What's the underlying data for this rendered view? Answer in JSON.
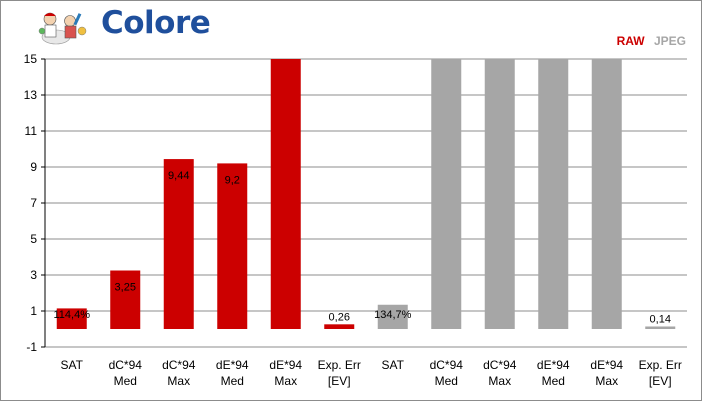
{
  "title": "Colore",
  "legend": [
    {
      "name": "RAW",
      "color": "#cc0000"
    },
    {
      "name": "JPEG",
      "color": "#a6a6a6"
    }
  ],
  "chart_data": {
    "type": "bar",
    "categories": [
      [
        "SAT"
      ],
      [
        "dC*94",
        "Med"
      ],
      [
        "dC*94",
        "Max"
      ],
      [
        "dE*94",
        "Med"
      ],
      [
        "dE*94",
        "Max"
      ],
      [
        "Exp. Err",
        "[EV]"
      ],
      [
        "SAT"
      ],
      [
        "dC*94",
        "Med"
      ],
      [
        "dC*94",
        "Max"
      ],
      [
        "dE*94",
        "Med"
      ],
      [
        "dE*94",
        "Max"
      ],
      [
        "Exp. Err",
        "[EV]"
      ]
    ],
    "values": [
      1.144,
      3.25,
      9.44,
      9.2,
      15,
      0.26,
      1.347,
      15,
      15,
      15,
      15,
      0.14
    ],
    "data_labels": [
      "114,4%",
      "3,25",
      "9,44",
      "9,2",
      "",
      "0,26",
      "134,7%",
      "",
      "",
      "",
      "",
      "0,14"
    ],
    "series_colors": [
      "#cc0000",
      "#cc0000",
      "#cc0000",
      "#cc0000",
      "#cc0000",
      "#cc0000",
      "#a6a6a6",
      "#a6a6a6",
      "#a6a6a6",
      "#a6a6a6",
      "#a6a6a6",
      "#a6a6a6"
    ],
    "y_ticks": [
      15,
      13,
      11,
      9,
      7,
      5,
      3,
      1,
      -1
    ],
    "ylim": [
      -1,
      15
    ],
    "grid": true
  }
}
